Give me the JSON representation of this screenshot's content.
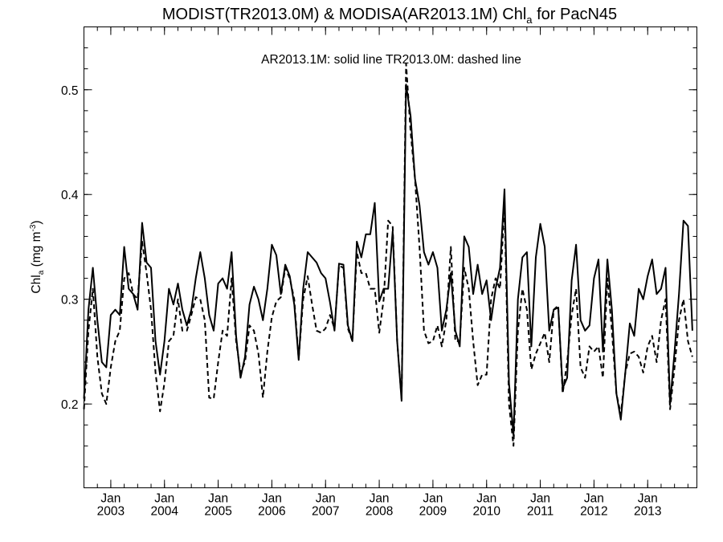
{
  "chart_data": {
    "type": "line",
    "title": {
      "prefix": "MODIST(TR2013.0M) & MODISA(AR2013.1M)  Chl",
      "subscript": "a",
      "suffix": " for PacN45"
    },
    "annotation": "AR2013.1M: solid line   TR2013.0M: dashed line",
    "ylabel": {
      "main": "Chl",
      "subscript": "a",
      "unit": " (mg m",
      "superscript": "-3",
      "close": ")"
    },
    "xlim": [
      "2002-07",
      "2013-12"
    ],
    "ylim": [
      0.12,
      0.56
    ],
    "yticks": [
      {
        "value": 0.2,
        "label": "0.2"
      },
      {
        "value": 0.3,
        "label": "0.3"
      },
      {
        "value": 0.4,
        "label": "0.4"
      },
      {
        "value": 0.5,
        "label": "0.5"
      }
    ],
    "xticks": [
      {
        "date": "2003-01",
        "month": "Jan",
        "year": "2003"
      },
      {
        "date": "2004-01",
        "month": "Jan",
        "year": "2004"
      },
      {
        "date": "2005-01",
        "month": "Jan",
        "year": "2005"
      },
      {
        "date": "2006-01",
        "month": "Jan",
        "year": "2006"
      },
      {
        "date": "2007-01",
        "month": "Jan",
        "year": "2007"
      },
      {
        "date": "2008-01",
        "month": "Jan",
        "year": "2008"
      },
      {
        "date": "2009-01",
        "month": "Jan",
        "year": "2009"
      },
      {
        "date": "2010-01",
        "month": "Jan",
        "year": "2010"
      },
      {
        "date": "2011-01",
        "month": "Jan",
        "year": "2011"
      },
      {
        "date": "2012-01",
        "month": "Jan",
        "year": "2012"
      },
      {
        "date": "2013-01",
        "month": "Jan",
        "year": "2013"
      }
    ],
    "start": "2002-07",
    "series": [
      {
        "name": "AR2013.1M",
        "style": "solid",
        "color": "#000000",
        "values": [
          0.205,
          0.29,
          0.33,
          0.28,
          0.24,
          0.235,
          0.285,
          0.29,
          0.285,
          0.35,
          0.31,
          0.305,
          0.29,
          0.373,
          0.335,
          0.33,
          0.26,
          0.228,
          0.26,
          0.31,
          0.295,
          0.315,
          0.29,
          0.275,
          0.29,
          0.32,
          0.345,
          0.32,
          0.285,
          0.27,
          0.315,
          0.32,
          0.31,
          0.345,
          0.265,
          0.225,
          0.245,
          0.295,
          0.312,
          0.3,
          0.28,
          0.31,
          0.352,
          0.342,
          0.305,
          0.333,
          0.322,
          0.295,
          0.242,
          0.31,
          0.345,
          0.34,
          0.335,
          0.325,
          0.32,
          0.297,
          0.27,
          0.334,
          0.333,
          0.275,
          0.26,
          0.355,
          0.34,
          0.362,
          0.362,
          0.392,
          0.298,
          0.31,
          0.31,
          0.365,
          0.26,
          0.203,
          0.505,
          0.475,
          0.415,
          0.39,
          0.345,
          0.333,
          0.345,
          0.33,
          0.27,
          0.29,
          0.325,
          0.27,
          0.255,
          0.36,
          0.35,
          0.305,
          0.333,
          0.305,
          0.318,
          0.28,
          0.31,
          0.33,
          0.405,
          0.22,
          0.17,
          0.3,
          0.34,
          0.345,
          0.255,
          0.34,
          0.372,
          0.35,
          0.27,
          0.29,
          0.292,
          0.215,
          0.225,
          0.318,
          0.352,
          0.28,
          0.27,
          0.275,
          0.32,
          0.338,
          0.25,
          0.338,
          0.29,
          0.21,
          0.185,
          0.23,
          0.277,
          0.265,
          0.31,
          0.3,
          0.322,
          0.338,
          0.305,
          0.31,
          0.33,
          0.2,
          0.25,
          0.305,
          0.375,
          0.37,
          0.27
        ]
      },
      {
        "name": "TR2013.0M",
        "style": "dashed",
        "color": "#000000",
        "values": [
          0.195,
          0.27,
          0.31,
          0.245,
          0.21,
          0.2,
          0.235,
          0.26,
          0.27,
          0.32,
          0.325,
          0.305,
          0.3,
          0.355,
          0.325,
          0.29,
          0.23,
          0.193,
          0.22,
          0.26,
          0.265,
          0.3,
          0.27,
          0.27,
          0.285,
          0.302,
          0.3,
          0.28,
          0.206,
          0.205,
          0.24,
          0.27,
          0.265,
          0.32,
          0.26,
          0.23,
          0.24,
          0.275,
          0.27,
          0.248,
          0.206,
          0.25,
          0.283,
          0.298,
          0.302,
          0.33,
          0.32,
          0.3,
          0.243,
          0.3,
          0.322,
          0.295,
          0.27,
          0.268,
          0.272,
          0.285,
          0.272,
          0.332,
          0.33,
          0.272,
          0.26,
          0.345,
          0.325,
          0.325,
          0.31,
          0.31,
          0.268,
          0.3,
          0.375,
          0.37,
          0.26,
          0.205,
          0.525,
          0.46,
          0.415,
          0.35,
          0.27,
          0.258,
          0.26,
          0.275,
          0.255,
          0.28,
          0.35,
          0.26,
          0.26,
          0.33,
          0.31,
          0.26,
          0.218,
          0.228,
          0.228,
          0.3,
          0.32,
          0.31,
          0.39,
          0.2,
          0.16,
          0.27,
          0.31,
          0.29,
          0.233,
          0.248,
          0.258,
          0.268,
          0.24,
          0.29,
          0.294,
          0.21,
          0.24,
          0.285,
          0.31,
          0.235,
          0.225,
          0.255,
          0.25,
          0.255,
          0.225,
          0.32,
          0.27,
          0.21,
          0.19,
          0.23,
          0.248,
          0.25,
          0.245,
          0.23,
          0.255,
          0.265,
          0.24,
          0.28,
          0.3,
          0.195,
          0.235,
          0.28,
          0.3,
          0.26,
          0.245
        ]
      }
    ]
  }
}
